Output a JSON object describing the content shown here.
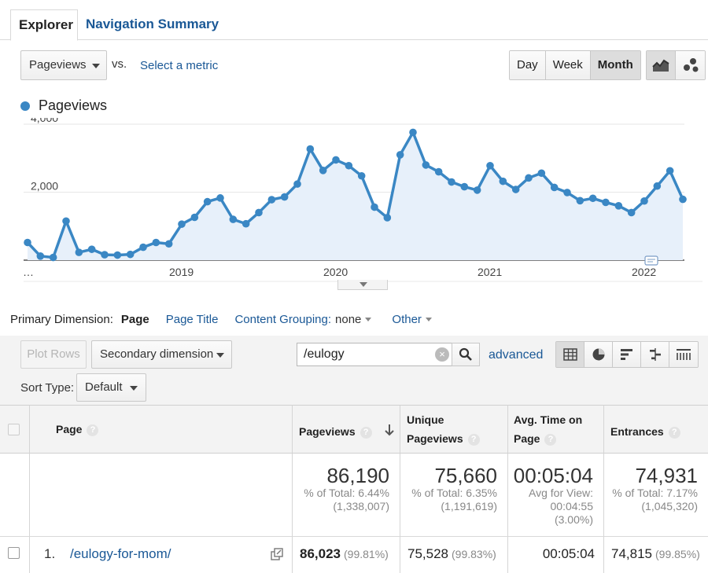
{
  "tabs": [
    {
      "label": "Explorer",
      "active": true
    },
    {
      "label": "Navigation Summary",
      "active": false
    }
  ],
  "metric": {
    "selected": "Pageviews",
    "vs": "vs.",
    "select_link": "Select a metric"
  },
  "granularity": {
    "options": [
      "Day",
      "Week",
      "Month"
    ],
    "selected": "Month"
  },
  "chart_icons": [
    "line-chart-icon",
    "motion-chart-icon"
  ],
  "chart_data": {
    "type": "area",
    "series": [
      {
        "name": "Pageviews",
        "color": "#3a87c4",
        "values": [
          520,
          120,
          80,
          1150,
          230,
          320,
          160,
          150,
          170,
          380,
          520,
          480,
          1060,
          1260,
          1720,
          1830,
          1200,
          1070,
          1400,
          1780,
          1860,
          2240,
          3270,
          2640,
          2950,
          2780,
          2480,
          1560,
          1250,
          3100,
          3760,
          2800,
          2600,
          2300,
          2160,
          2060,
          2780,
          2320,
          2080,
          2420,
          2560,
          2140,
          1990,
          1750,
          1820,
          1700,
          1600,
          1400,
          1740,
          2180,
          2630,
          1790
        ]
      }
    ],
    "x_ticks": [
      "…",
      "2019",
      "2020",
      "2021",
      "2022"
    ],
    "y_ticks": [
      "2,000",
      "4,000"
    ],
    "ylim": [
      0,
      4000
    ],
    "grid": true,
    "legend": "top-left"
  },
  "dimension": {
    "label": "Primary Dimension:",
    "current": "Page",
    "options": [
      "Page Title",
      "Content Grouping:",
      "Other"
    ],
    "content_grouping_value": "none"
  },
  "toolbar": {
    "plot_rows": "Plot Rows",
    "secondary": "Secondary dimension",
    "search_value": "/eulogy",
    "advanced": "advanced",
    "sort_label": "Sort Type:",
    "sort_value": "Default",
    "views": [
      "table-view-icon",
      "pie-view-icon",
      "bar-view-icon",
      "comparison-view-icon",
      "pivot-view-icon"
    ]
  },
  "table": {
    "headers": {
      "page": "Page",
      "pageviews": "Pageviews",
      "unique_1": "Unique",
      "unique_2": "Pageviews",
      "avg_1": "Avg. Time on",
      "avg_2": "Page",
      "entrances": "Entrances"
    },
    "totals": {
      "pageviews": "86,190",
      "pageviews_pct": "% of Total: 6.44%",
      "pageviews_total": "(1,338,007)",
      "unique": "75,660",
      "unique_pct": "% of Total: 6.35%",
      "unique_total": "(1,191,619)",
      "avg": "00:05:04",
      "avg_l1": "Avg for View:",
      "avg_l2": "00:04:55",
      "avg_l3": "(3.00%)",
      "entrances": "74,931",
      "entrances_pct": "% of Total: 7.17%",
      "entrances_total": "(1,045,320)"
    },
    "rows": [
      {
        "index": "1.",
        "page": "/eulogy-for-mom/",
        "pageviews": "86,023",
        "pageviews_pct": "(99.81%)",
        "unique": "75,528",
        "unique_pct": "(99.83%)",
        "avg": "00:05:04",
        "entrances": "74,815",
        "entrances_pct": "(99.85%)"
      }
    ]
  }
}
